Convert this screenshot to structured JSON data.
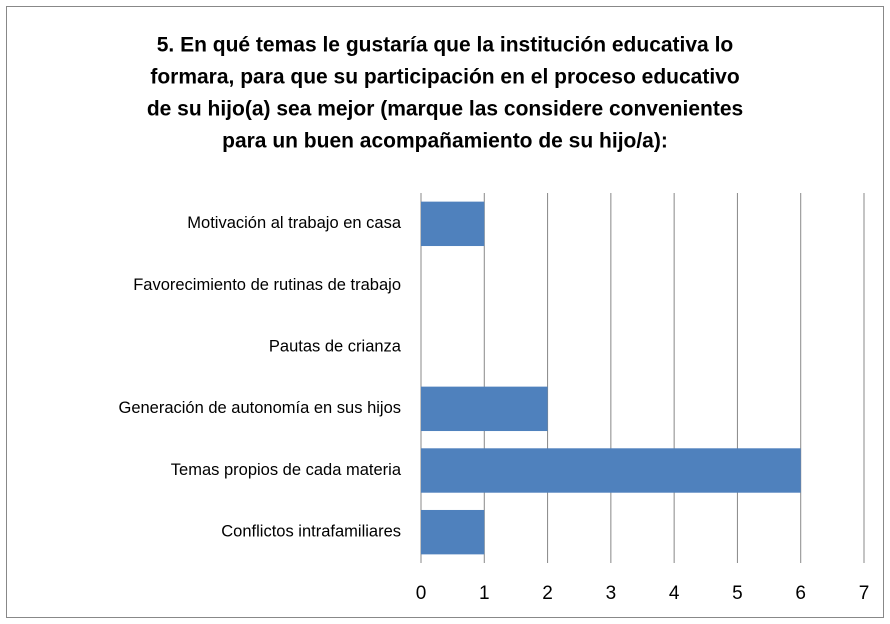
{
  "chart_data": {
    "type": "bar",
    "orientation": "horizontal",
    "title": [
      "5. En qué temas le gustaría que la institución educativa lo",
      "formara, para que su participación en el proceso educativo",
      "de su hijo(a) sea mejor (marque las considere convenientes",
      "para un buen acompañamiento de su hijo/a):"
    ],
    "categories": [
      "Motivación al trabajo en casa",
      "Favorecimiento de rutinas de trabajo",
      "Pautas de crianza",
      "Generación de autonomía en sus hijos",
      "Temas propios de cada materia",
      "Conflictos intrafamiliares"
    ],
    "values": [
      1,
      0,
      0,
      2,
      6,
      1
    ],
    "color": "#4f81bd",
    "xlim": [
      0,
      7
    ],
    "xticks": [
      0,
      1,
      2,
      3,
      4,
      5,
      6,
      7
    ],
    "grid": true
  }
}
